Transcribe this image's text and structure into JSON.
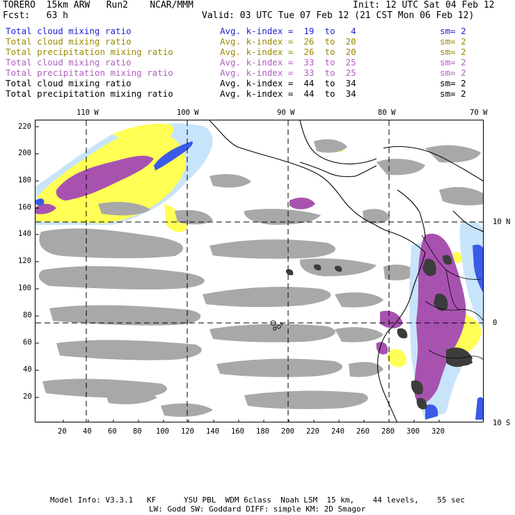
{
  "header": {
    "model": "TORERO  15km ARW   Run2    NCAR/MMM",
    "init": "Init: 12 UTC Sat 04 Feb 12",
    "fcst": "Fcst:   63 h",
    "valid": "Valid: 03 UTC Tue 07 Feb 12 (21 CST Mon 06 Feb 12)"
  },
  "legend": [
    {
      "field": "Total cloud mixing ratio",
      "kindex": "Avg. k-index =  19  to   4",
      "sm": "sm= 2",
      "color": "#1f1fd0"
    },
    {
      "field": "Total cloud mixing ratio",
      "kindex": "Avg. k-index =  26  to  20",
      "sm": "sm= 2",
      "color": "#9a8a00"
    },
    {
      "field": "Total precipitation mixing ratio",
      "kindex": "Avg. k-index =  26  to  20",
      "sm": "sm= 2",
      "color": "#9a8a00"
    },
    {
      "field": "Total cloud mixing ratio",
      "kindex": "Avg. k-index =  33  to  25",
      "sm": "sm= 2",
      "color": "#b060c0"
    },
    {
      "field": "Total precipitation mixing ratio",
      "kindex": "Avg. k-index =  33  to  25",
      "sm": "sm= 2",
      "color": "#b060c0"
    },
    {
      "field": "Total cloud mixing ratio",
      "kindex": "Avg. k-index =  44  to  34",
      "sm": "sm= 2",
      "color": "#000000"
    },
    {
      "field": "Total precipitation mixing ratio",
      "kindex": "Avg. k-index =  44  to  34",
      "sm": "sm= 2",
      "color": "#000000"
    }
  ],
  "map": {
    "lon_labels": [
      "110 W",
      "100 W",
      "90 W",
      "80 W",
      "70 W"
    ],
    "lat_labels": [
      "10 N",
      "0",
      "10 S"
    ],
    "y_ticks": [
      "220",
      "200",
      "180",
      "160",
      "140",
      "120",
      "100",
      "80",
      "60",
      "40",
      "20"
    ],
    "x_ticks": [
      "20",
      "40",
      "60",
      "80",
      "100",
      "120",
      "140",
      "160",
      "180",
      "200",
      "220",
      "240",
      "260",
      "280",
      "300",
      "320"
    ],
    "colors": {
      "gray": "#a8a8a8",
      "yellow": "#ffff55",
      "purple": "#a852b0",
      "light_blue": "#c8e4fa",
      "blue": "#3a5ae8",
      "dark": "#3c3c3c"
    }
  },
  "footer": {
    "line1": "Model Info: V3.3.1   KF      YSU PBL  WDM 6class  Noah LSM  15 km,    44 levels,    55 sec",
    "line2": "LW: Godd SW: Goddard DIFF: simple KM: 2D Smagor"
  }
}
